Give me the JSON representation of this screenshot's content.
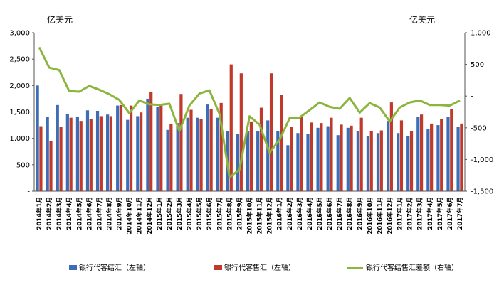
{
  "chart_data": {
    "type": "bar",
    "left_unit": "亿美元",
    "right_unit": "亿美元",
    "categories": [
      "2014年1月",
      "2014年2月",
      "2014年3月",
      "2014年4月",
      "2014年5月",
      "2014年6月",
      "2014年7月",
      "2014年8月",
      "2014年9月",
      "2014年10月",
      "2014年11月",
      "2014年12月",
      "2015年1月",
      "2015年2月",
      "2015年3月",
      "2015年4月",
      "2015年5月",
      "2015年6月",
      "2015年7月",
      "2015年8月",
      "2015年9月",
      "2015年10月",
      "2015年11月",
      "2015年12月",
      "2016年1月",
      "2016年2月",
      "2016年3月",
      "2016年4月",
      "2016年5月",
      "2016年6月",
      "2016年7月",
      "2016年8月",
      "2016年9月",
      "2016年10月",
      "2016年11月",
      "2016年12月",
      "2017年1月",
      "2017年2月",
      "2017年3月",
      "2017年4月",
      "2017年5月",
      "2017年6月",
      "2017年7月"
    ],
    "left_axis": {
      "ylim": [
        0,
        3000
      ],
      "ticks": [
        "-",
        "500",
        "1,000",
        "1,500",
        "2,000",
        "2,500",
        "3,000"
      ]
    },
    "right_axis": {
      "ylim": [
        -1500,
        1000
      ],
      "ticks": [
        "-1,500",
        "-1,000",
        "-500",
        "-",
        "500",
        "1,000"
      ]
    },
    "series": [
      {
        "name": "银行代客结汇（左轴）",
        "axis": "left",
        "kind": "bar",
        "color": "#3d6db5",
        "values": [
          2000,
          1410,
          1630,
          1460,
          1400,
          1530,
          1520,
          1450,
          1620,
          1350,
          1420,
          1750,
          1600,
          1160,
          1290,
          1390,
          1390,
          1640,
          1390,
          1130,
          1080,
          1130,
          1130,
          1340,
          1130,
          870,
          1100,
          1080,
          1200,
          1230,
          1060,
          1200,
          1140,
          1040,
          1100,
          1330,
          1100,
          1040,
          1400,
          1170,
          1250,
          1400,
          1220
        ]
      },
      {
        "name": "银行代客售汇（左轴）",
        "axis": "left",
        "kind": "bar",
        "color": "#c0392b",
        "values": [
          1230,
          950,
          1220,
          1390,
          1330,
          1370,
          1420,
          1420,
          1630,
          1620,
          1490,
          1880,
          1640,
          1270,
          1840,
          1540,
          1360,
          1560,
          1670,
          2400,
          2230,
          1320,
          1580,
          2230,
          1820,
          1220,
          1400,
          1300,
          1290,
          1390,
          1260,
          1240,
          1390,
          1130,
          1150,
          1680,
          1340,
          1140,
          1450,
          1280,
          1370,
          1560,
          1280
        ]
      },
      {
        "name": "银行代客结售汇差额（右轴）",
        "axis": "right",
        "kind": "line",
        "color": "#8bb53c",
        "values": [
          770,
          450,
          410,
          80,
          70,
          160,
          100,
          30,
          -60,
          -270,
          -70,
          -130,
          -140,
          -120,
          -550,
          -150,
          40,
          90,
          -280,
          -1280,
          -1160,
          -320,
          -450,
          -890,
          -690,
          -350,
          -340,
          -220,
          -100,
          -170,
          -200,
          -30,
          -260,
          -110,
          -180,
          -400,
          -180,
          -100,
          -70,
          -140,
          -140,
          -150,
          -70
        ]
      }
    ]
  }
}
